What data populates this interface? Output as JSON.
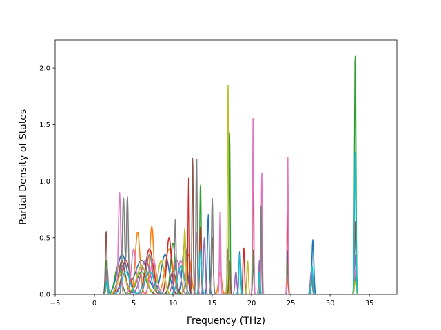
{
  "chart_data": {
    "type": "line",
    "title": "",
    "xlabel": "Frequency (THz)",
    "ylabel": "Partial Density of States",
    "xlim": [
      -5.0,
      38.5
    ],
    "ylim": [
      0.0,
      2.25
    ],
    "xticks": [
      -5,
      0,
      5,
      10,
      15,
      20,
      25,
      30,
      35
    ],
    "xtick_labels": [
      "−5",
      "0",
      "5",
      "10",
      "15",
      "20",
      "25",
      "30",
      "35"
    ],
    "yticks": [
      0.0,
      0.5,
      1.0,
      1.5,
      2.0
    ],
    "ytick_labels": [
      "0.0",
      "0.5",
      "1.0",
      "1.5",
      "2.0"
    ],
    "grid": false,
    "legend": "none",
    "x_range": [
      -3.5,
      36.8
    ],
    "colors": [
      "#1f77b4",
      "#ff7f0e",
      "#2ca02c",
      "#d62728",
      "#9467bd",
      "#8c564b",
      "#e377c2",
      "#7f7f7f",
      "#bcbd22",
      "#17becf"
    ],
    "series": [
      {
        "peaks": [
          [
            1.5,
            0.22,
            0.12
          ],
          [
            3.5,
            0.35,
            0.6
          ],
          [
            6,
            0.3,
            0.8
          ],
          [
            9,
            0.35,
            0.5
          ],
          [
            11.5,
            0.45,
            0.3
          ],
          [
            14.5,
            0.7,
            0.12
          ],
          [
            18.5,
            0.38,
            0.12
          ],
          [
            20.2,
            0.3,
            0.08
          ],
          [
            24.6,
            0.4,
            0.07
          ],
          [
            27.8,
            0.48,
            0.12
          ],
          [
            33.2,
            0.6,
            0.1
          ]
        ]
      },
      {
        "peaks": [
          [
            1.6,
            0.2,
            0.12
          ],
          [
            3.5,
            0.3,
            0.4
          ],
          [
            5.5,
            0.55,
            0.3
          ],
          [
            7.3,
            0.6,
            0.25
          ],
          [
            9.5,
            0.4,
            0.5
          ],
          [
            12,
            0.35,
            0.3
          ],
          [
            16,
            0.2,
            0.2
          ],
          [
            24.6,
            0.15,
            0.07
          ]
        ]
      },
      {
        "peaks": [
          [
            1.5,
            0.3,
            0.12
          ],
          [
            3,
            0.25,
            0.4
          ],
          [
            6,
            0.2,
            0.6
          ],
          [
            10,
            0.45,
            0.3
          ],
          [
            13.5,
            0.98,
            0.09
          ],
          [
            17.2,
            1.45,
            0.07
          ],
          [
            20.2,
            0.4,
            0.07
          ],
          [
            24.6,
            0.3,
            0.07
          ],
          [
            33.2,
            2.15,
            0.09
          ]
        ]
      },
      {
        "peaks": [
          [
            1.6,
            0.18,
            0.12
          ],
          [
            4,
            0.3,
            0.5
          ],
          [
            7,
            0.4,
            0.5
          ],
          [
            9.5,
            0.5,
            0.3
          ],
          [
            12,
            1.03,
            0.08
          ],
          [
            13.5,
            0.6,
            0.1
          ],
          [
            19,
            0.42,
            0.1
          ],
          [
            20.2,
            1.2,
            0.07
          ],
          [
            24.6,
            0.87,
            0.07
          ],
          [
            33.2,
            0.65,
            0.1
          ]
        ]
      },
      {
        "peaks": [
          [
            1.6,
            0.15,
            0.12
          ],
          [
            3.5,
            0.25,
            0.5
          ],
          [
            6.5,
            0.3,
            0.6
          ],
          [
            10.5,
            0.3,
            0.4
          ],
          [
            14,
            0.5,
            0.12
          ],
          [
            18,
            0.2,
            0.12
          ],
          [
            21,
            0.3,
            0.08
          ],
          [
            27.6,
            0.2,
            0.12
          ],
          [
            33.2,
            0.35,
            0.1
          ]
        ]
      },
      {
        "peaks": [
          [
            1.5,
            0.56,
            0.1
          ],
          [
            3.5,
            0.3,
            0.4
          ],
          [
            6,
            0.25,
            0.6
          ],
          [
            10,
            0.2,
            0.4
          ],
          [
            12.5,
            1.22,
            0.08
          ],
          [
            15,
            0.5,
            0.12
          ],
          [
            17.2,
            0.3,
            0.08
          ],
          [
            21,
            0.2,
            0.08
          ],
          [
            33.2,
            0.2,
            0.1
          ]
        ]
      },
      {
        "peaks": [
          [
            1.6,
            0.15,
            0.12
          ],
          [
            3.2,
            0.9,
            0.15
          ],
          [
            5,
            0.4,
            0.3
          ],
          [
            7.5,
            0.3,
            0.4
          ],
          [
            11,
            0.3,
            0.4
          ],
          [
            13,
            0.55,
            0.12
          ],
          [
            16,
            0.75,
            0.08
          ],
          [
            20.2,
            1.58,
            0.07
          ],
          [
            21.3,
            1.08,
            0.07
          ],
          [
            24.6,
            1.26,
            0.07
          ],
          [
            33.2,
            0.22,
            0.1
          ]
        ]
      },
      {
        "peaks": [
          [
            1.6,
            0.25,
            0.12
          ],
          [
            3.7,
            0.85,
            0.15
          ],
          [
            4.2,
            0.86,
            0.12
          ],
          [
            7,
            0.35,
            0.4
          ],
          [
            10.3,
            0.66,
            0.1
          ],
          [
            13,
            1.24,
            0.08
          ],
          [
            15,
            0.85,
            0.1
          ],
          [
            17,
            0.4,
            0.1
          ],
          [
            21.2,
            0.8,
            0.07
          ],
          [
            27.6,
            0.15,
            0.12
          ],
          [
            33.2,
            0.15,
            0.1
          ]
        ]
      },
      {
        "peaks": [
          [
            1.6,
            0.1,
            0.12
          ],
          [
            3.5,
            0.2,
            0.5
          ],
          [
            6,
            0.25,
            0.6
          ],
          [
            8.5,
            0.3,
            0.4
          ],
          [
            11.5,
            0.58,
            0.12
          ],
          [
            17,
            1.86,
            0.07
          ],
          [
            19.5,
            0.3,
            0.1
          ],
          [
            33.2,
            0.12,
            0.1
          ]
        ]
      },
      {
        "peaks": [
          [
            1.6,
            0.12,
            0.12
          ],
          [
            4,
            0.2,
            0.5
          ],
          [
            7,
            0.2,
            0.6
          ],
          [
            11,
            0.25,
            0.4
          ],
          [
            13.5,
            0.4,
            0.15
          ],
          [
            18.5,
            0.35,
            0.1
          ],
          [
            21,
            0.2,
            0.08
          ],
          [
            27.7,
            0.25,
            0.12
          ],
          [
            33.2,
            1.28,
            0.09
          ]
        ]
      }
    ]
  }
}
